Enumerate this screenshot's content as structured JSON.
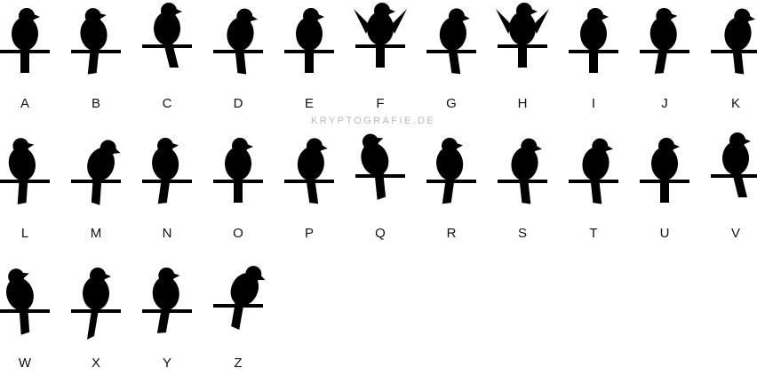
{
  "watermark": "KRYPTOGRAFIE.DE",
  "ink_color": "#000000",
  "label_color": "#111111",
  "symbols": [
    {
      "letter": "A"
    },
    {
      "letter": "B"
    },
    {
      "letter": "C"
    },
    {
      "letter": "D"
    },
    {
      "letter": "E"
    },
    {
      "letter": "F"
    },
    {
      "letter": "G"
    },
    {
      "letter": "H"
    },
    {
      "letter": "I"
    },
    {
      "letter": "J"
    },
    {
      "letter": "K"
    },
    {
      "letter": "L"
    },
    {
      "letter": "M"
    },
    {
      "letter": "N"
    },
    {
      "letter": "O"
    },
    {
      "letter": "P"
    },
    {
      "letter": "Q"
    },
    {
      "letter": "R"
    },
    {
      "letter": "S"
    },
    {
      "letter": "T"
    },
    {
      "letter": "U"
    },
    {
      "letter": "V"
    },
    {
      "letter": "W"
    },
    {
      "letter": "X"
    },
    {
      "letter": "Y"
    },
    {
      "letter": "Z"
    }
  ]
}
